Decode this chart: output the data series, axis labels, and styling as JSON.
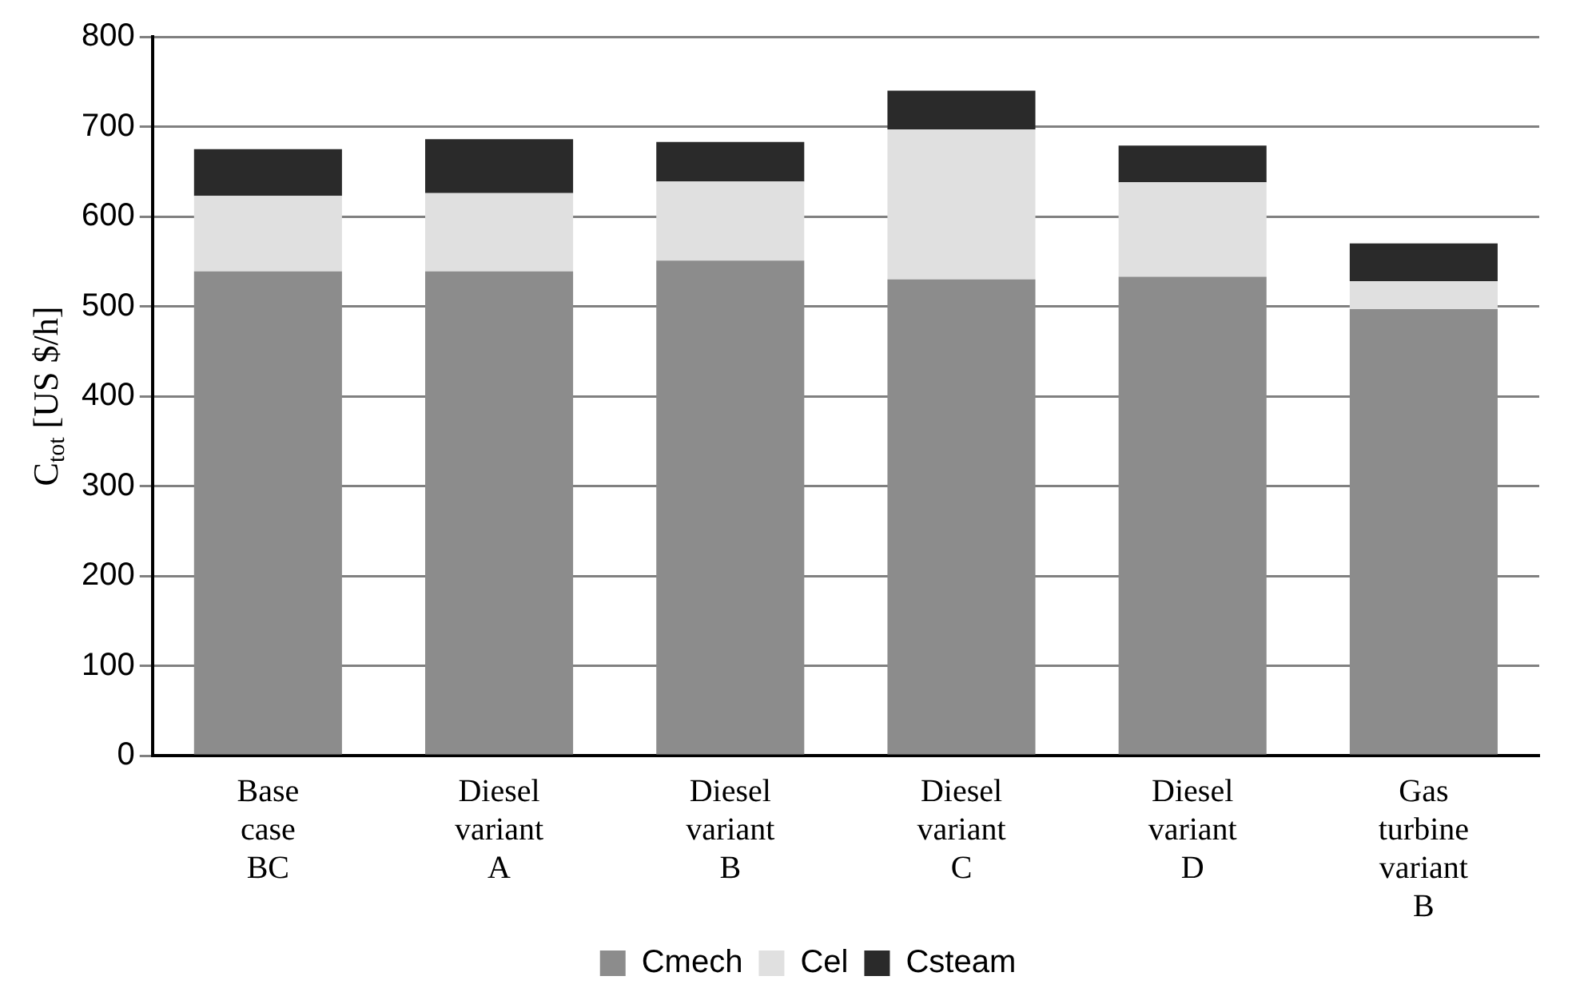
{
  "chart_data": {
    "type": "bar",
    "ylabel": "C$_{tot}$ [US $/h]",
    "categories": [
      "Base case BC",
      "Diesel variant A",
      "Diesel variant B",
      "Diesel variant C",
      "Diesel variant D",
      "Gas turbine variant B"
    ],
    "series": [
      {
        "name": "Cmech",
        "color": "#8c8c8c",
        "values": [
          539,
          539,
          551,
          530,
          533,
          497
        ]
      },
      {
        "name": "Cel",
        "color": "#e0e0e0",
        "values": [
          84,
          87,
          88,
          167,
          105,
          31
        ]
      },
      {
        "name": "Csteam",
        "color": "#2a2a2a",
        "values": [
          52,
          60,
          44,
          43,
          41,
          42
        ]
      }
    ],
    "stacked": true,
    "ylim": [
      0,
      800
    ],
    "yticks": [
      0,
      100,
      200,
      300,
      400,
      500,
      600,
      700,
      800
    ],
    "grid": "y",
    "legend": "bottom"
  }
}
